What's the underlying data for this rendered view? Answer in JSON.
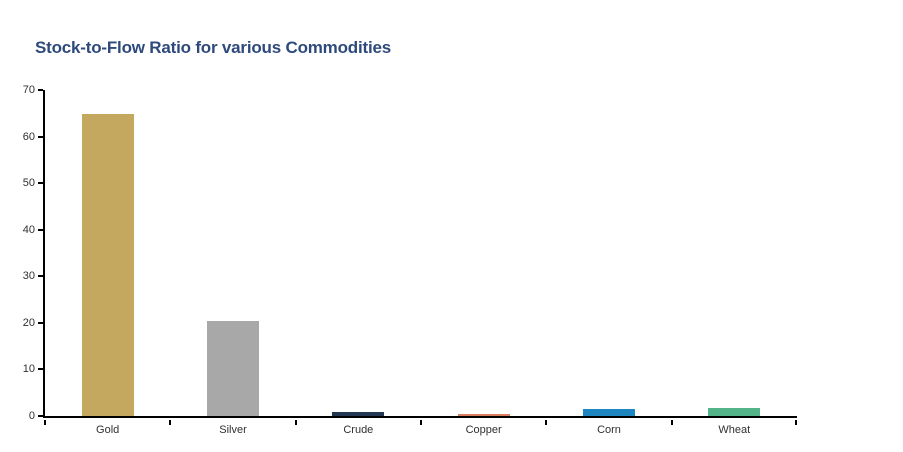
{
  "chart_data": {
    "type": "bar",
    "title": "Stock-to-Flow Ratio for various Commodities",
    "categories": [
      "Gold",
      "Silver",
      "Crude",
      "Copper",
      "Corn",
      "Wheat"
    ],
    "values": [
      64.8,
      20.3,
      0.8,
      0.4,
      1.4,
      1.7
    ],
    "bar_colors": [
      "#C5A85F",
      "#A8A8A8",
      "#243752",
      "#D97D5F",
      "#1E87C2",
      "#52B488"
    ],
    "xlabel": "",
    "ylabel": "",
    "ylim": [
      0,
      70
    ],
    "yticks": [
      0,
      10,
      20,
      30,
      40,
      50,
      60,
      70
    ],
    "grid": false,
    "legend_position": "none",
    "title_color": "#2E4A7C",
    "axis_color": "#000000",
    "tick_label_color": "#303030",
    "background_color": "#FFFFFF"
  }
}
